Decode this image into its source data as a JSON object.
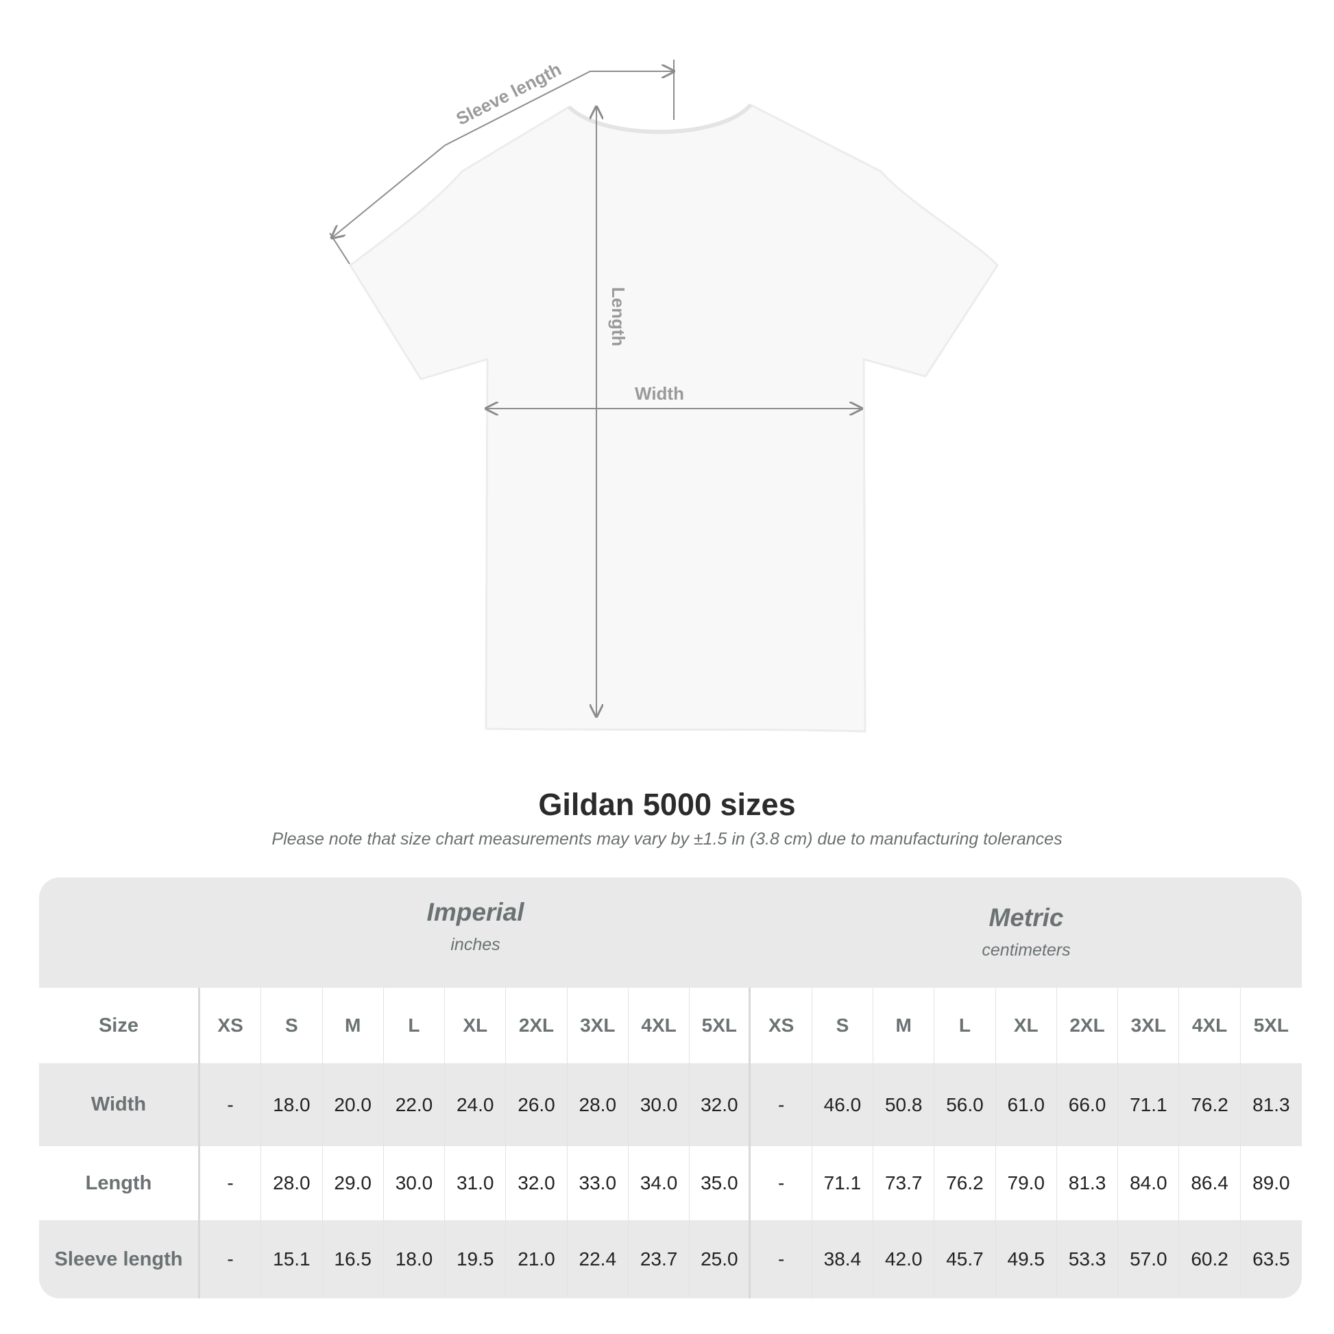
{
  "diagram": {
    "labels": {
      "sleeve": "Sleeve length",
      "length": "Length",
      "width": "Width"
    }
  },
  "title": "Gildan 5000 sizes",
  "note": "Please note that size chart measurements may vary by ±1.5 in (3.8 cm) due to manufacturing tolerances",
  "table": {
    "imperial": {
      "title": "Imperial",
      "unit": "inches"
    },
    "metric": {
      "title": "Metric",
      "unit": "centimeters"
    },
    "size_label": "Size",
    "sizes": [
      "XS",
      "S",
      "M",
      "L",
      "XL",
      "2XL",
      "3XL",
      "4XL",
      "5XL"
    ],
    "rows": [
      {
        "label": "Width",
        "imperial": [
          "-",
          "18.0",
          "20.0",
          "22.0",
          "24.0",
          "26.0",
          "28.0",
          "30.0",
          "32.0"
        ],
        "metric": [
          "-",
          "46.0",
          "50.8",
          "56.0",
          "61.0",
          "66.0",
          "71.1",
          "76.2",
          "81.3"
        ]
      },
      {
        "label": "Length",
        "imperial": [
          "-",
          "28.0",
          "29.0",
          "30.0",
          "31.0",
          "32.0",
          "33.0",
          "34.0",
          "35.0"
        ],
        "metric": [
          "-",
          "71.1",
          "73.7",
          "76.2",
          "79.0",
          "81.3",
          "84.0",
          "86.4",
          "89.0"
        ]
      },
      {
        "label": "Sleeve length",
        "imperial": [
          "-",
          "15.1",
          "16.5",
          "18.0",
          "19.5",
          "21.0",
          "22.4",
          "23.7",
          "25.0"
        ],
        "metric": [
          "-",
          "38.4",
          "42.0",
          "45.7",
          "49.5",
          "53.3",
          "57.0",
          "60.2",
          "63.5"
        ]
      }
    ]
  },
  "colors": {
    "header_text": "#6b7273",
    "band": "#e9e9e9",
    "line": "#8c8c8c"
  }
}
